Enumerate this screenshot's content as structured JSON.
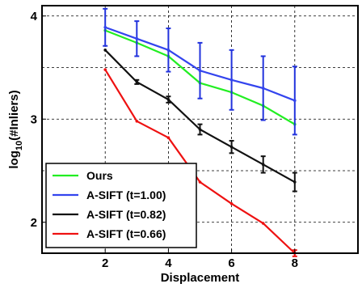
{
  "chart_data": {
    "type": "line",
    "xlabel": "Displacement",
    "ylabel_main": "log",
    "ylabel_sub": "10",
    "ylabel_rest": "(#Inliers)",
    "xlim": [
      0,
      10
    ],
    "ylim": [
      1.7,
      4.1
    ],
    "xticks": [
      2,
      4,
      6,
      8
    ],
    "yticks": [
      2,
      3,
      4
    ],
    "grid": "dashed",
    "legend_position": "bottom-left",
    "series": [
      {
        "name": "Ours",
        "color": "#22ee22",
        "x": [
          2,
          3,
          4,
          5,
          6,
          7,
          8
        ],
        "y": [
          3.86,
          3.74,
          3.61,
          3.35,
          3.26,
          3.13,
          2.95
        ],
        "err": [
          0,
          0,
          0,
          0,
          0,
          0,
          0
        ]
      },
      {
        "name": "A-SIFT (t=1.00)",
        "color": "#3344ee",
        "x": [
          2,
          3,
          4,
          5,
          6,
          7,
          8
        ],
        "y": [
          3.89,
          3.78,
          3.67,
          3.47,
          3.38,
          3.3,
          3.18
        ],
        "err": [
          0.18,
          0.17,
          0.21,
          0.27,
          0.29,
          0.31,
          0.33
        ],
        "errcolor": "#2233dd"
      },
      {
        "name": "A-SIFT (t=0.82)",
        "color": "#111111",
        "x": [
          2,
          3,
          4,
          5,
          6,
          7,
          8
        ],
        "y": [
          3.67,
          3.36,
          3.19,
          2.9,
          2.73,
          2.56,
          2.39
        ],
        "err": [
          0,
          0.02,
          0.03,
          0.05,
          0.06,
          0.08,
          0.09
        ],
        "errcolor": "#111111"
      },
      {
        "name": "A-SIFT (t=0.66)",
        "color": "#ee1111",
        "x": [
          2,
          3,
          4,
          5,
          6,
          7,
          8
        ],
        "y": [
          3.48,
          2.98,
          2.82,
          2.39,
          2.18,
          1.99,
          1.7
        ],
        "err": [
          0,
          0,
          0,
          0,
          0,
          0,
          0.03
        ],
        "errcolor": "#ee1111"
      }
    ]
  }
}
